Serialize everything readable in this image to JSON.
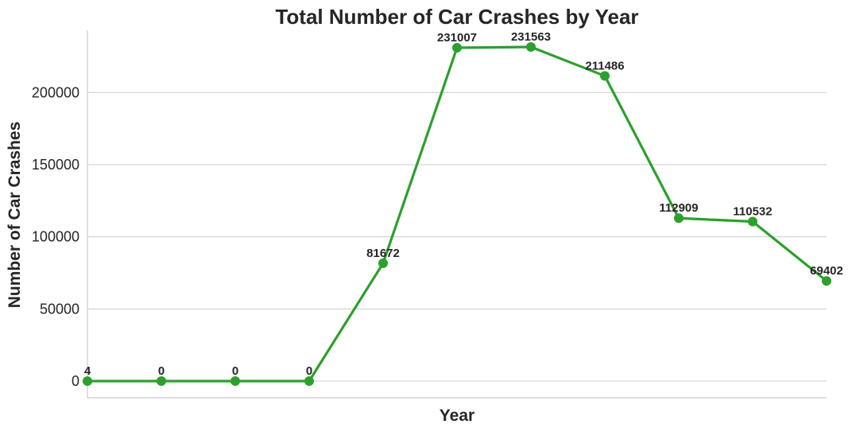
{
  "chart_data": {
    "type": "line",
    "title": "Total Number of Car Crashes by Year",
    "xlabel": "Year",
    "ylabel": "Number of Car Crashes",
    "x": [
      0,
      1,
      2,
      3,
      4,
      5,
      6,
      7,
      8,
      9,
      10
    ],
    "values": [
      4,
      0,
      0,
      0,
      81672,
      231007,
      231563,
      211486,
      112909,
      110532,
      69402
    ],
    "data_labels": [
      "4",
      "0",
      "0",
      "0",
      "81672",
      "231007",
      "231563",
      "211486",
      "112909",
      "110532",
      "69402"
    ],
    "yticks": [
      0,
      50000,
      100000,
      150000,
      200000
    ],
    "ytick_labels": [
      "0",
      "50000",
      "100000",
      "150000",
      "200000"
    ],
    "ylim": [
      -11580,
      243150
    ],
    "xlim": [
      0,
      10
    ],
    "grid": "horizontal",
    "color": "#2ca02c"
  }
}
